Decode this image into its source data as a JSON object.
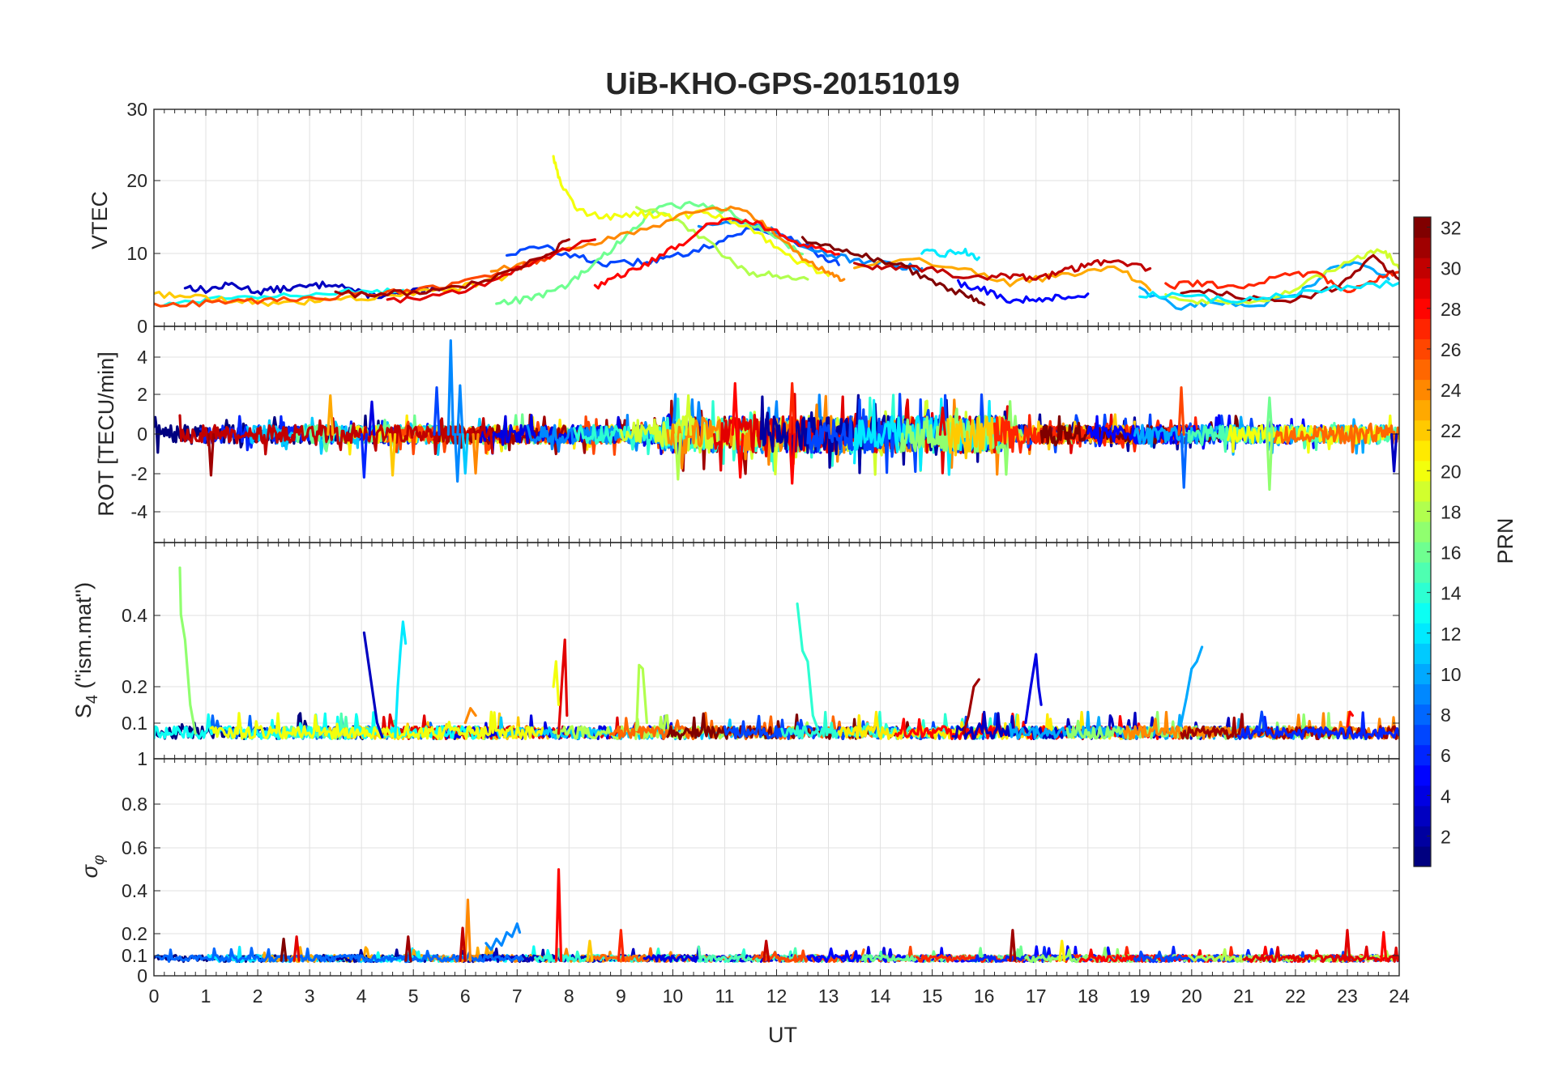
{
  "chart_data": {
    "type": "line",
    "title": "UiB-KHO-GPS-20151019",
    "xlabel": "UT",
    "xlim": [
      0,
      24
    ],
    "x_ticks": [
      "0",
      "1",
      "2",
      "3",
      "4",
      "5",
      "6",
      "7",
      "8",
      "9",
      "10",
      "11",
      "12",
      "13",
      "14",
      "15",
      "16",
      "17",
      "18",
      "19",
      "20",
      "21",
      "22",
      "23",
      "24"
    ],
    "grid": true,
    "colorbar": {
      "label": "PRN",
      "range": [
        1,
        32
      ],
      "ticks": [
        "2",
        "4",
        "6",
        "8",
        "10",
        "12",
        "14",
        "16",
        "18",
        "20",
        "22",
        "24",
        "26",
        "28",
        "30",
        "32"
      ],
      "colormap": "jet",
      "placement": "right"
    },
    "panels": [
      {
        "id": "vtec",
        "ylabel": "VTEC",
        "ylim": [
          0,
          30
        ],
        "y_ticks": [
          "0",
          "10",
          "20",
          "30"
        ],
        "series": [
          {
            "prn": 3,
            "x": [
              0.6,
              1.0,
              1.5,
              2.0,
              2.5,
              3.0,
              3.5,
              4.0,
              4.5,
              5.0,
              5.5
            ],
            "y": [
              5.5,
              5.0,
              5.8,
              4.8,
              5.2,
              5.5,
              6.0,
              4.5,
              4.2,
              4.8,
              5.0
            ]
          },
          {
            "prn": 7,
            "x": [
              6.8,
              7.5,
              8.2,
              8.8,
              9.5,
              10.0,
              10.8,
              11.5,
              12.2,
              12.8,
              13.2
            ],
            "y": [
              10.0,
              11.0,
              9.5,
              8.5,
              9.0,
              9.5,
              11.5,
              13.5,
              12.5,
              10.0,
              8.5
            ]
          },
          {
            "prn": 9,
            "x": [
              10.5,
              11.2,
              12.0,
              12.8,
              13.5,
              14.2,
              14.8
            ],
            "y": [
              14.0,
              14.5,
              13.0,
              10.5,
              9.0,
              8.5,
              8.0
            ]
          },
          {
            "prn": 12,
            "x": [
              14.8,
              15.2,
              15.6,
              15.9
            ],
            "y": [
              10.2,
              10.0,
              10.4,
              9.5
            ]
          },
          {
            "prn": 13,
            "x": [
              0.2,
              1.0,
              2.0,
              3.0,
              4.0,
              4.8
            ],
            "y": [
              3.0,
              3.8,
              4.2,
              4.6,
              4.8,
              5.0
            ]
          },
          {
            "prn": 16,
            "x": [
              6.6,
              7.2,
              7.8,
              8.3,
              8.8,
              9.3,
              9.8,
              10.5,
              11.2,
              11.8,
              12.5
            ],
            "y": [
              3.2,
              3.8,
              5.0,
              7.5,
              10.5,
              14.0,
              16.5,
              17.0,
              15.5,
              13.0,
              10.0
            ]
          },
          {
            "prn": 18,
            "x": [
              9.3,
              10.0,
              10.8,
              11.4,
              12.0,
              12.6
            ],
            "y": [
              16.5,
              15.0,
              11.0,
              7.5,
              7.0,
              6.5
            ]
          },
          {
            "prn": 20,
            "x": [
              7.7,
              7.85,
              8.2,
              8.8,
              9.4,
              10.0,
              10.6,
              11.2,
              11.8,
              12.4,
              13.0
            ],
            "y": [
              23.5,
              19.5,
              16.0,
              15.0,
              15.5,
              15.0,
              15.8,
              14.5,
              12.0,
              9.0,
              7.0
            ]
          },
          {
            "prn": 22,
            "x": [
              0.0,
              0.8,
              1.6,
              2.4,
              3.2,
              4.0,
              5.0,
              6.0,
              6.8
            ],
            "y": [
              4.5,
              4.0,
              3.5,
              3.0,
              3.5,
              4.0,
              4.5,
              5.5,
              7.0
            ]
          },
          {
            "prn": 23,
            "x": [
              13.5,
              14.5,
              15.5,
              16.5,
              17.5,
              18.5,
              19.2
            ],
            "y": [
              8.0,
              9.5,
              8.0,
              6.0,
              7.0,
              8.5,
              5.0
            ]
          },
          {
            "prn": 24,
            "x": [
              6.5,
              7.5,
              8.5,
              9.5,
              10.5,
              11.2,
              11.8,
              12.5,
              13.0,
              13.3
            ],
            "y": [
              7.5,
              9.5,
              11.5,
              13.5,
              16.0,
              16.5,
              14.0,
              9.5,
              7.5,
              6.5
            ]
          },
          {
            "prn": 26,
            "x": [
              0.0,
              1.0,
              2.0,
              3.0,
              4.0,
              5.0,
              6.0,
              7.0,
              7.6
            ],
            "y": [
              3.0,
              3.2,
              3.5,
              3.8,
              4.5,
              4.8,
              6.0,
              8.0,
              9.5
            ]
          },
          {
            "prn": 28,
            "x": [
              8.5,
              9.0,
              9.6,
              10.2,
              10.8,
              11.4,
              12.0,
              12.6,
              13.2
            ],
            "y": [
              5.5,
              7.0,
              9.0,
              11.5,
              14.5,
              14.8,
              13.0,
              11.0,
              10.0
            ]
          },
          {
            "prn": 29,
            "x": [
              4.5,
              5.5,
              6.5,
              7.5,
              8.5
            ],
            "y": [
              3.5,
              4.2,
              6.0,
              9.5,
              12.0
            ]
          },
          {
            "prn": 30,
            "x": [
              13.5,
              14.2,
              15.0,
              15.8,
              16.5,
              17.0,
              17.5,
              18.0,
              18.5,
              19.2
            ],
            "y": [
              8.5,
              8.0,
              8.0,
              6.5,
              7.0,
              6.5,
              7.5,
              8.5,
              9.0,
              8.0
            ]
          },
          {
            "prn": 31,
            "x": [
              3.5,
              4.5,
              5.5,
              6.5,
              7.5,
              8.0
            ],
            "y": [
              4.5,
              4.5,
              5.0,
              6.5,
              9.5,
              12.0
            ]
          },
          {
            "prn": 32,
            "x": [
              12.5,
              13.2,
              13.8,
              14.4,
              15.0,
              15.6,
              16.0
            ],
            "y": [
              12.0,
              10.5,
              9.5,
              8.5,
              6.0,
              4.5,
              3.0
            ]
          },
          {
            "prn": 5,
            "x": [
              15.5,
              16.0,
              16.5,
              17.0,
              17.5,
              18.0
            ],
            "y": [
              6.0,
              5.0,
              3.5,
              3.8,
              4.0,
              4.5
            ]
          },
          {
            "prn": 10,
            "x": [
              19.0,
              19.8,
              20.5,
              21.2,
              22.0,
              22.6,
              23.2,
              23.8
            ],
            "y": [
              5.0,
              2.5,
              3.5,
              2.8,
              4.0,
              7.5,
              9.0,
              6.5
            ]
          },
          {
            "prn": 19,
            "x": [
              19.5,
              20.2,
              21.0,
              21.8,
              22.5,
              23.2,
              23.7,
              24.0
            ],
            "y": [
              4.0,
              3.5,
              3.0,
              4.5,
              7.0,
              9.5,
              10.5,
              8.0
            ]
          },
          {
            "prn": 27,
            "x": [
              19.5,
              20.2,
              21.0,
              21.8,
              22.5,
              23.0,
              23.5,
              24.0
            ],
            "y": [
              5.5,
              6.0,
              5.0,
              7.5,
              7.0,
              4.5,
              6.5,
              7.5
            ]
          },
          {
            "prn": 31,
            "x": [
              19.8,
              20.5,
              21.2,
              22.0,
              22.8,
              23.5,
              24.0
            ],
            "y": [
              5.0,
              4.5,
              4.0,
              3.5,
              5.5,
              9.5,
              6.5
            ]
          },
          {
            "prn": 12,
            "x": [
              19.0,
              20.0,
              21.0,
              22.0,
              23.0,
              24.0
            ],
            "y": [
              4.5,
              4.0,
              3.5,
              4.5,
              5.5,
              6.0
            ]
          }
        ]
      },
      {
        "id": "rot",
        "ylabel": "ROT [TECU/min]",
        "ylim": [
          -5.3,
          5.3
        ],
        "y_ticks": [
          "-4",
          "-2",
          "0",
          "2",
          "4"
        ],
        "spikes": [
          {
            "prn": 9,
            "x": 5.72,
            "y": 4.6
          },
          {
            "prn": 9,
            "x": 5.85,
            "y": -2.3
          },
          {
            "prn": 7,
            "x": 5.45,
            "y": 2.3
          },
          {
            "prn": 9,
            "x": 5.9,
            "y": 2.4
          },
          {
            "prn": 31,
            "x": 1.1,
            "y": -2.0
          },
          {
            "prn": 4,
            "x": 4.2,
            "y": 1.6
          },
          {
            "prn": 6,
            "x": 4.05,
            "y": -2.1
          },
          {
            "prn": 22,
            "x": 4.6,
            "y": -2.0
          },
          {
            "prn": 11,
            "x": 6.0,
            "y": -1.9
          },
          {
            "prn": 24,
            "x": 6.2,
            "y": -1.9
          },
          {
            "prn": 28,
            "x": 11.2,
            "y": 2.5
          },
          {
            "prn": 28,
            "x": 11.3,
            "y": -2.1
          },
          {
            "prn": 27,
            "x": 12.3,
            "y": 2.5
          },
          {
            "prn": 28,
            "x": 12.3,
            "y": -2.4
          },
          {
            "prn": 18,
            "x": 10.1,
            "y": -2.2
          },
          {
            "prn": 19,
            "x": 10.3,
            "y": 1.9
          },
          {
            "prn": 26,
            "x": 19.8,
            "y": 2.3
          },
          {
            "prn": 8,
            "x": 19.85,
            "y": -2.6
          },
          {
            "prn": 16,
            "x": 21.5,
            "y": 1.8
          },
          {
            "prn": 17,
            "x": 21.5,
            "y": -2.7
          },
          {
            "prn": 3,
            "x": 23.9,
            "y": -1.8
          },
          {
            "prn": 29,
            "x": 15.2,
            "y": 1.3
          },
          {
            "prn": 23,
            "x": 3.4,
            "y": 1.9
          }
        ]
      },
      {
        "id": "s4",
        "ylabel": "S4 (\"ism.mat\")",
        "ylim": [
          0,
          0.6
        ],
        "y_ticks": [
          "0.1",
          "0.2",
          "0.4"
        ],
        "events": [
          {
            "prn": 17,
            "x": [
              0.5,
              0.52,
              0.6,
              0.7,
              0.8
            ],
            "y": [
              0.53,
              0.4,
              0.33,
              0.15,
              0.07
            ]
          },
          {
            "prn": 3,
            "x": [
              4.05,
              4.1,
              4.2,
              4.3,
              4.4
            ],
            "y": [
              0.35,
              0.3,
              0.2,
              0.1,
              0.06
            ]
          },
          {
            "prn": 12,
            "x": [
              4.65,
              4.7,
              4.75,
              4.8,
              4.85
            ],
            "y": [
              0.06,
              0.2,
              0.3,
              0.38,
              0.32
            ]
          },
          {
            "prn": 29,
            "x": [
              7.8,
              7.88,
              7.92,
              7.96
            ],
            "y": [
              0.07,
              0.25,
              0.33,
              0.12
            ]
          },
          {
            "prn": 20,
            "x": [
              7.7,
              7.75,
              7.8
            ],
            "y": [
              0.2,
              0.27,
              0.15
            ]
          },
          {
            "prn": 18,
            "x": [
              9.3,
              9.35,
              9.42,
              9.5
            ],
            "y": [
              0.08,
              0.26,
              0.25,
              0.1
            ]
          },
          {
            "prn": 14,
            "x": [
              12.4,
              12.5,
              12.6,
              12.7,
              12.8
            ],
            "y": [
              0.43,
              0.3,
              0.27,
              0.12,
              0.08
            ]
          },
          {
            "prn": 31,
            "x": [
              15.6,
              15.7,
              15.8,
              15.9
            ],
            "y": [
              0.07,
              0.12,
              0.2,
              0.22
            ]
          },
          {
            "prn": 4,
            "x": [
              16.8,
              16.9,
              17.0,
              17.05,
              17.1
            ],
            "y": [
              0.1,
              0.2,
              0.29,
              0.2,
              0.15
            ]
          },
          {
            "prn": 10,
            "x": [
              19.8,
              19.9,
              20.0,
              20.1,
              20.2
            ],
            "y": [
              0.1,
              0.17,
              0.25,
              0.27,
              0.31
            ]
          },
          {
            "prn": 28,
            "x": [
              23.0,
              23.05,
              23.1
            ],
            "y": [
              0.09,
              0.13,
              0.12
            ]
          },
          {
            "prn": 24,
            "x": [
              6.0,
              6.1,
              6.2
            ],
            "y": [
              0.1,
              0.14,
              0.12
            ]
          },
          {
            "prn": 7,
            "x": [
              21.3,
              21.35,
              21.4
            ],
            "y": [
              0.08,
              0.13,
              0.08
            ]
          }
        ]
      },
      {
        "id": "sigma_phi",
        "ylabel": "σφ",
        "ylim": [
          0,
          1.0
        ],
        "y_ticks": [
          "0",
          "0.1",
          "0.2",
          "0.4",
          "0.6",
          "0.8",
          "1"
        ],
        "spikes": [
          {
            "prn": 28,
            "x": 7.8,
            "y": 0.49
          },
          {
            "prn": 24,
            "x": 6.05,
            "y": 0.35
          },
          {
            "prn": 30,
            "x": 5.95,
            "y": 0.22
          },
          {
            "prn": 31,
            "x": 4.9,
            "y": 0.18
          },
          {
            "prn": 29,
            "x": 2.75,
            "y": 0.18
          },
          {
            "prn": 32,
            "x": 2.5,
            "y": 0.17
          },
          {
            "prn": 27,
            "x": 9.0,
            "y": 0.21
          },
          {
            "prn": 31,
            "x": 16.55,
            "y": 0.21
          },
          {
            "prn": 21,
            "x": 17.5,
            "y": 0.16
          },
          {
            "prn": 29,
            "x": 23.0,
            "y": 0.21
          },
          {
            "prn": 28,
            "x": 23.7,
            "y": 0.2
          },
          {
            "prn": 30,
            "x": 11.8,
            "y": 0.16
          },
          {
            "prn": 22,
            "x": 8.4,
            "y": 0.16
          }
        ],
        "events": [
          {
            "prn": 9,
            "x": [
              6.4,
              6.5,
              6.6,
              6.7,
              6.8,
              6.9,
              7.0,
              7.05
            ],
            "y": [
              0.15,
              0.12,
              0.17,
              0.14,
              0.2,
              0.18,
              0.24,
              0.2
            ]
          }
        ]
      }
    ]
  }
}
